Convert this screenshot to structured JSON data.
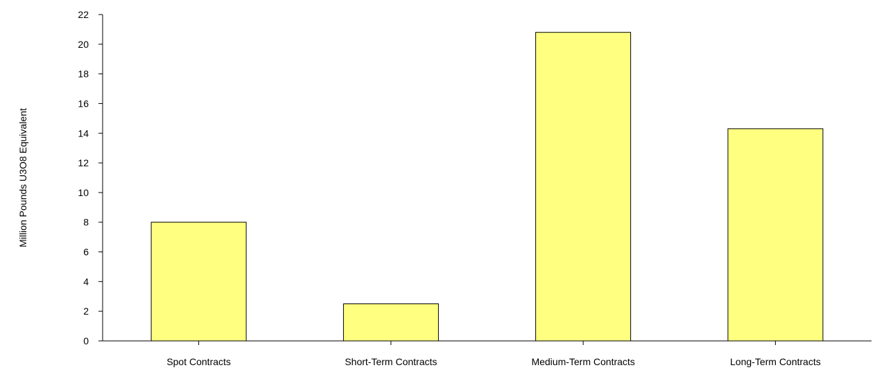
{
  "chart_data": {
    "type": "bar",
    "title": "",
    "xlabel": "",
    "ylabel": "Million Pounds U3O8 Equivalent",
    "categories": [
      "Spot Contracts",
      "Short-Term Contracts",
      "Medium-Term Contracts",
      "Long-Term Contracts"
    ],
    "values": [
      8.0,
      2.5,
      20.8,
      14.3
    ],
    "ylim": [
      0,
      22
    ],
    "yticks": [
      0,
      2,
      4,
      6,
      8,
      10,
      12,
      14,
      16,
      18,
      20,
      22
    ],
    "grid": false,
    "legend": "none",
    "colors": {
      "bar_fill": "#ffff80",
      "bar_stroke": "#000000",
      "axis": "#000000"
    }
  }
}
